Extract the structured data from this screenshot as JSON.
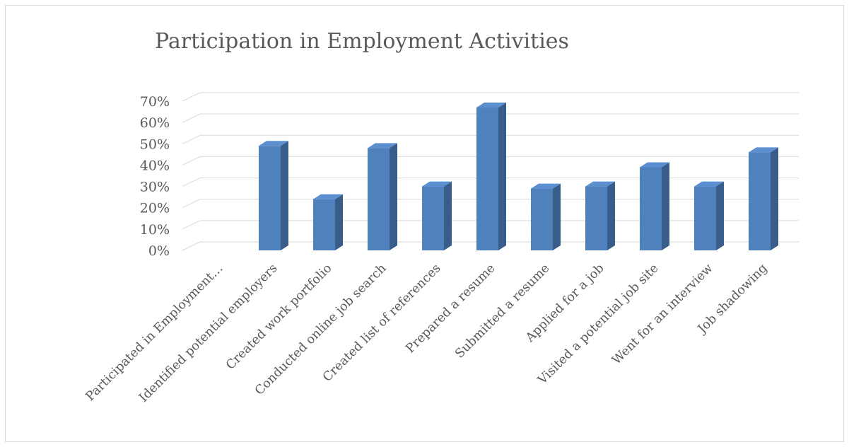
{
  "chart_data": {
    "type": "bar",
    "title": "Participation in Employment Activities",
    "xlabel": "",
    "ylabel": "",
    "categories": [
      "Participated in Employment…",
      "Identified potential employers",
      "Created work portfolio",
      "Conducted online job search",
      "Created list of references",
      "Prepared a resume",
      "Submitted a resume",
      "Applied for a job",
      "Visited a potential job site",
      "Went for an interview",
      "Job shadowing"
    ],
    "values": [
      0,
      49,
      24,
      48,
      30,
      67,
      29,
      30,
      39,
      30,
      46
    ],
    "value_format": "percent",
    "ylim": [
      0,
      70
    ],
    "yticks": [
      "0%",
      "10%",
      "20%",
      "30%",
      "40%",
      "50%",
      "60%",
      "70%"
    ],
    "grid": true,
    "legend": "none",
    "style": "3d-column",
    "colors": {
      "bar_front": "#4f81bd",
      "bar_side": "#385d8a",
      "bar_top": "#5b8fd0",
      "gridline": "#d9d9d9",
      "text": "#595959"
    }
  }
}
